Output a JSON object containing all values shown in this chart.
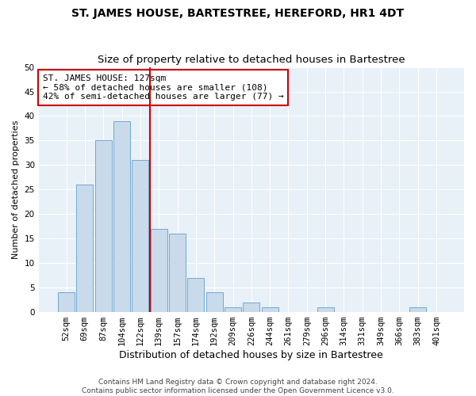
{
  "title": "ST. JAMES HOUSE, BARTESTREE, HEREFORD, HR1 4DT",
  "subtitle": "Size of property relative to detached houses in Bartestree",
  "xlabel": "Distribution of detached houses by size in Bartestree",
  "ylabel": "Number of detached properties",
  "bin_labels": [
    "52sqm",
    "69sqm",
    "87sqm",
    "104sqm",
    "122sqm",
    "139sqm",
    "157sqm",
    "174sqm",
    "192sqm",
    "209sqm",
    "226sqm",
    "244sqm",
    "261sqm",
    "279sqm",
    "296sqm",
    "314sqm",
    "331sqm",
    "349sqm",
    "366sqm",
    "383sqm",
    "401sqm"
  ],
  "bar_values": [
    4,
    26,
    35,
    39,
    31,
    17,
    16,
    7,
    4,
    1,
    2,
    1,
    0,
    0,
    1,
    0,
    0,
    0,
    0,
    1,
    0
  ],
  "bar_color": "#c9daea",
  "bar_edgecolor": "#6faad4",
  "vline_color": "#cc0000",
  "annotation_title": "ST. JAMES HOUSE: 127sqm",
  "annotation_line1": "← 58% of detached houses are smaller (108)",
  "annotation_line2": "42% of semi-detached houses are larger (77) →",
  "annotation_box_color": "#ffffff",
  "annotation_box_edgecolor": "#cc0000",
  "ylim": [
    0,
    50
  ],
  "yticks": [
    0,
    5,
    10,
    15,
    20,
    25,
    30,
    35,
    40,
    45,
    50
  ],
  "footer_line1": "Contains HM Land Registry data © Crown copyright and database right 2024.",
  "footer_line2": "Contains public sector information licensed under the Open Government Licence v3.0.",
  "background_color": "#e8f0f8",
  "grid_color": "#ffffff",
  "title_fontsize": 10,
  "subtitle_fontsize": 9.5,
  "xlabel_fontsize": 9,
  "ylabel_fontsize": 8,
  "tick_fontsize": 7.5,
  "annotation_fontsize": 8,
  "footer_fontsize": 6.5
}
